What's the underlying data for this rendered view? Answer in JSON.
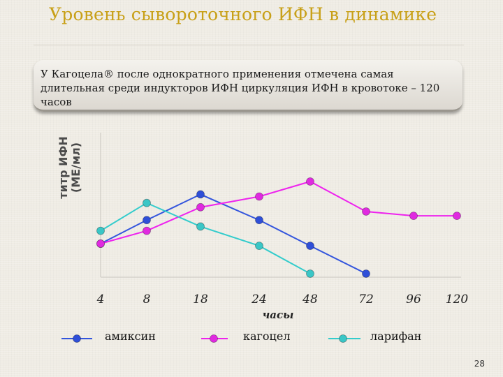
{
  "slide": {
    "title": "Уровень сывороточного ИФН   в динамике",
    "note": "У Кагоцела® после однократного применения отмечена самая длительная среди индукторов ИФН циркуляция ИФН в кровотоке – 120 часов",
    "page_number": "28"
  },
  "chart_data": {
    "type": "line",
    "categories": [
      "4",
      "8",
      "18",
      "24",
      "48",
      "72",
      "96",
      "120"
    ],
    "xlabel": "часы",
    "ylabel_line1": "титр ИФН",
    "ylabel_line2": "(МЕ/мл)",
    "grid": false,
    "legend_position": "bottom",
    "series": [
      {
        "name": "амиксин",
        "color": "#3355dd",
        "marker_color": "#2f4fd8",
        "values": [
          1.0,
          1.55,
          2.15,
          1.55,
          0.95,
          0.3,
          null,
          null
        ]
      },
      {
        "name": "кагоцел",
        "color": "#ee22ee",
        "marker_color": "#e02ae0",
        "values": [
          1.0,
          1.3,
          1.85,
          2.1,
          2.45,
          1.75,
          1.65,
          1.65
        ]
      },
      {
        "name": "ларифан",
        "color": "#33cccc",
        "marker_color": "#3ac6c6",
        "values": [
          1.3,
          1.95,
          1.4,
          0.95,
          0.3,
          null,
          null,
          null
        ]
      }
    ]
  }
}
